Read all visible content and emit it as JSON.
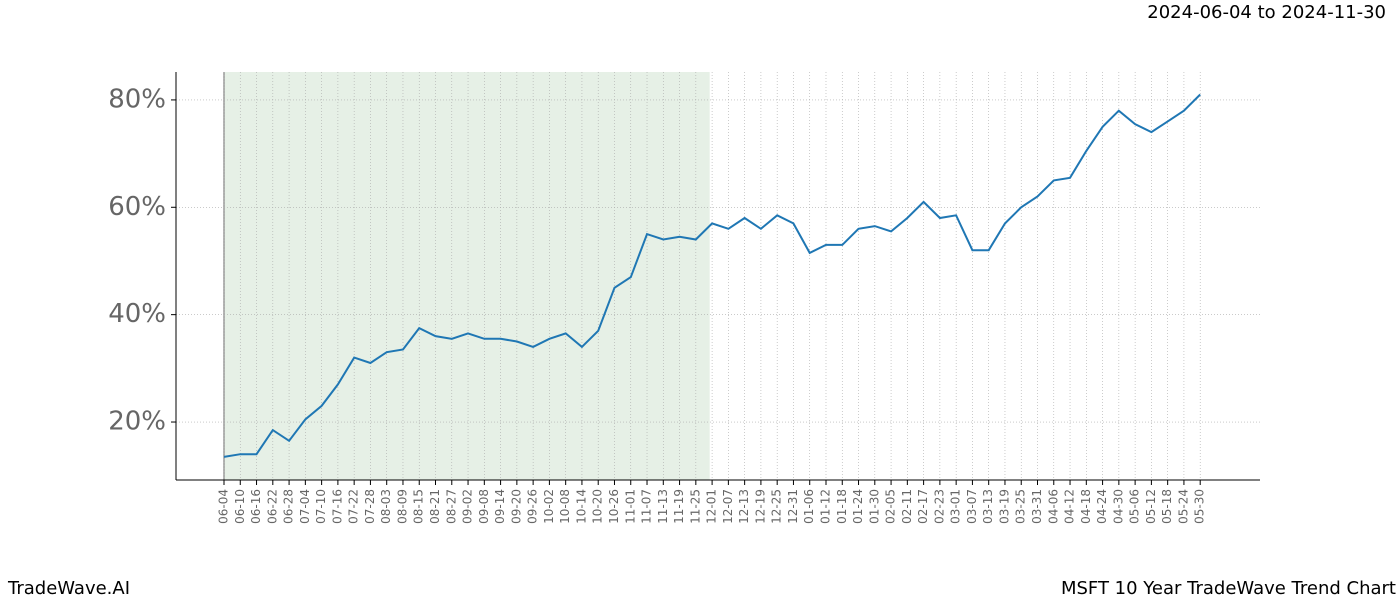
{
  "chart_data": {
    "type": "line",
    "title": "MSFT 10 Year TradeWave Trend Chart",
    "brand": "TradeWave.AI",
    "date_range": "2024-06-04 to 2024-11-30",
    "categories": [
      "06-04",
      "06-10",
      "06-16",
      "06-22",
      "06-28",
      "07-04",
      "07-10",
      "07-16",
      "07-22",
      "07-28",
      "08-03",
      "08-09",
      "08-15",
      "08-21",
      "08-27",
      "09-02",
      "09-08",
      "09-14",
      "09-20",
      "09-26",
      "10-02",
      "10-08",
      "10-14",
      "10-20",
      "10-26",
      "11-01",
      "11-07",
      "11-13",
      "11-19",
      "11-25",
      "12-01",
      "12-07",
      "12-13",
      "12-19",
      "12-25",
      "12-31",
      "01-06",
      "01-12",
      "01-18",
      "01-24",
      "01-30",
      "02-05",
      "02-11",
      "02-17",
      "02-23",
      "03-01",
      "03-07",
      "03-13",
      "03-19",
      "03-25",
      "03-31",
      "04-06",
      "04-12",
      "04-18",
      "04-24",
      "04-30",
      "05-06",
      "05-12",
      "05-18",
      "05-24",
      "05-30"
    ],
    "series": [
      {
        "color": "#1f77b4",
        "values": [
          13.5,
          14,
          14,
          18.5,
          16.5,
          20.5,
          23,
          27,
          32,
          31,
          33,
          33.5,
          37.5,
          36,
          35.5,
          36.5,
          35.5,
          35.5,
          35,
          34,
          35.5,
          36.5,
          34,
          37,
          45,
          47,
          55,
          54,
          54.5,
          54,
          57,
          56,
          58,
          56,
          58.5,
          57,
          51.5,
          53,
          53,
          56,
          56.5,
          55.5,
          58,
          61,
          58,
          58.5,
          52,
          52,
          57,
          60,
          62,
          65,
          65.5,
          70.5,
          75,
          78,
          75.5,
          74,
          76,
          78,
          81
        ]
      }
    ],
    "ylim": [
      9.2,
      85.2
    ],
    "yticks": [
      {
        "value": 20,
        "label": "20%"
      },
      {
        "value": 40,
        "label": "40%"
      },
      {
        "value": 60,
        "label": "60%"
      },
      {
        "value": 80,
        "label": "80%"
      }
    ],
    "grid": true,
    "shade_color": "#e6f0e6"
  }
}
